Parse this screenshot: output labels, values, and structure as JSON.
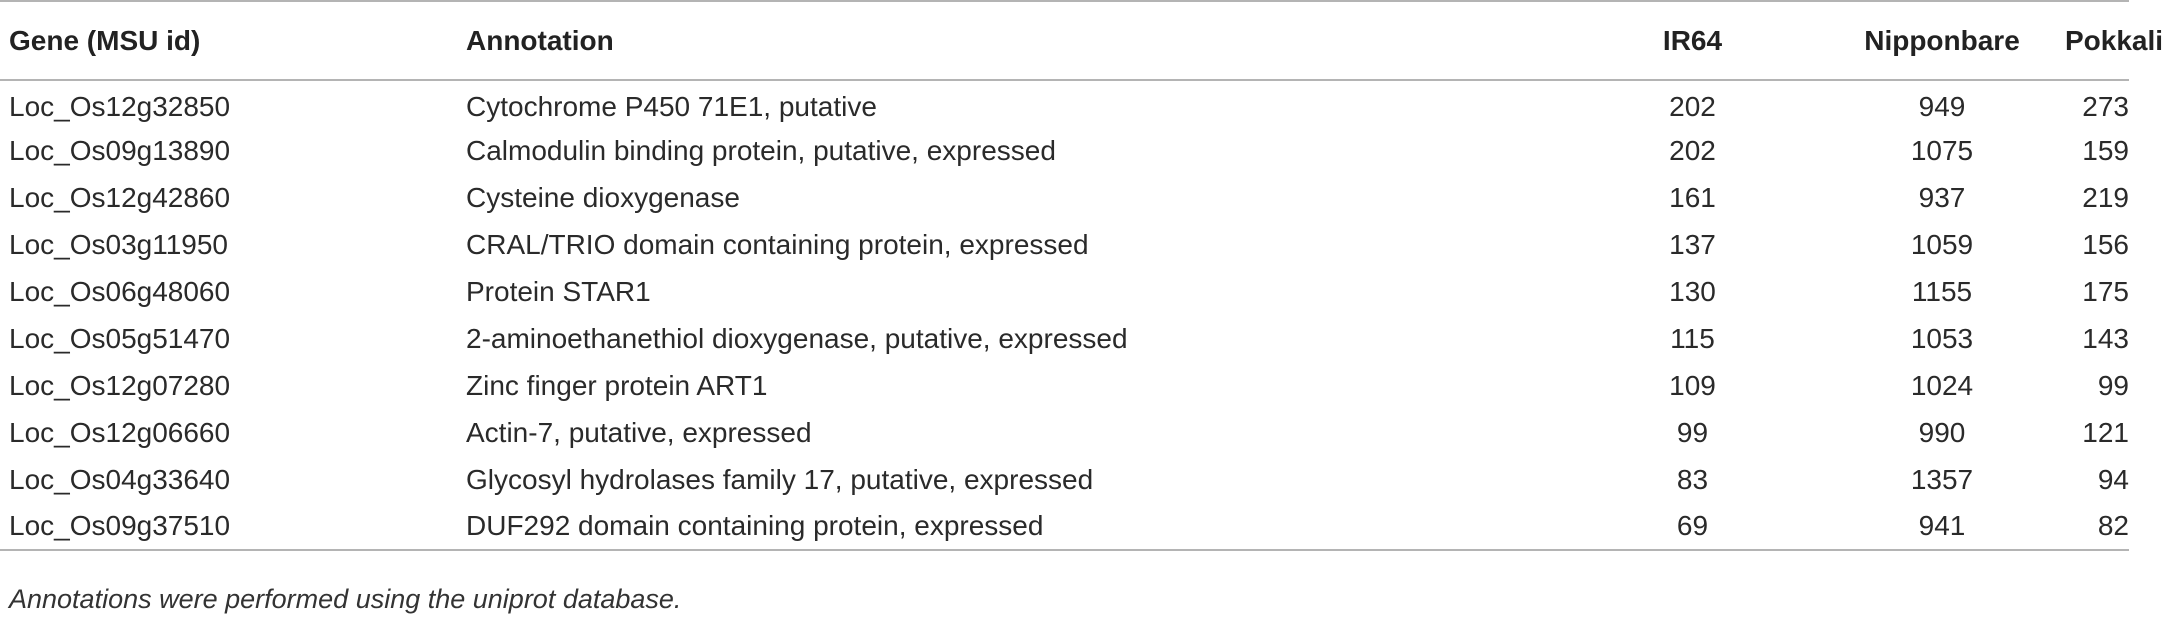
{
  "table": {
    "headers": {
      "gene": "Gene (MSU id)",
      "annotation": "Annotation",
      "ir64": "IR64",
      "nipponbare": "Nipponbare",
      "pokkali": "Pokkali"
    },
    "rows": [
      {
        "gene": "Loc_Os12g32850",
        "annotation": "Cytochrome P450 71E1, putative",
        "ir64": "202",
        "nipponbare": "949",
        "pokkali": "273"
      },
      {
        "gene": "Loc_Os09g13890",
        "annotation": "Calmodulin binding protein, putative, expressed",
        "ir64": "202",
        "nipponbare": "1075",
        "pokkali": "159"
      },
      {
        "gene": "Loc_Os12g42860",
        "annotation": "Cysteine dioxygenase",
        "ir64": "161",
        "nipponbare": "937",
        "pokkali": "219"
      },
      {
        "gene": "Loc_Os03g11950",
        "annotation": "CRAL/TRIO domain containing protein, expressed",
        "ir64": "137",
        "nipponbare": "1059",
        "pokkali": "156"
      },
      {
        "gene": "Loc_Os06g48060",
        "annotation": "Protein STAR1",
        "ir64": "130",
        "nipponbare": "1155",
        "pokkali": "175"
      },
      {
        "gene": "Loc_Os05g51470",
        "annotation": "2-aminoethanethiol dioxygenase, putative, expressed",
        "ir64": "115",
        "nipponbare": "1053",
        "pokkali": "143"
      },
      {
        "gene": "Loc_Os12g07280",
        "annotation": "Zinc finger protein ART1",
        "ir64": "109",
        "nipponbare": "1024",
        "pokkali": "99"
      },
      {
        "gene": "Loc_Os12g06660",
        "annotation": "Actin-7, putative, expressed",
        "ir64": "99",
        "nipponbare": "990",
        "pokkali": "121"
      },
      {
        "gene": "Loc_Os04g33640",
        "annotation": "Glycosyl hydrolases family 17, putative, expressed",
        "ir64": "83",
        "nipponbare": "1357",
        "pokkali": "94"
      },
      {
        "gene": "Loc_Os09g37510",
        "annotation": "DUF292 domain containing protein, expressed",
        "ir64": "69",
        "nipponbare": "941",
        "pokkali": "82"
      }
    ]
  },
  "footnote": "Annotations were performed using the uniprot database."
}
